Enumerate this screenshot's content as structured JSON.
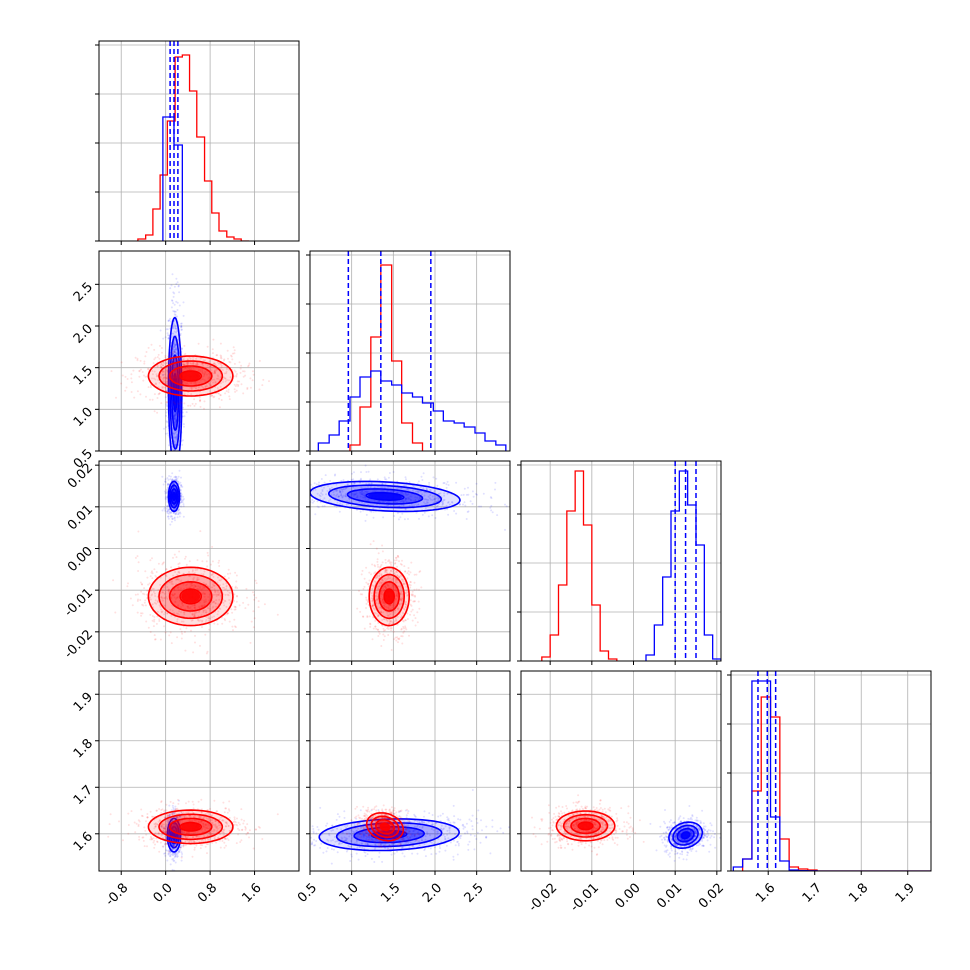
{
  "chart_data": {
    "type": "corner",
    "series": [
      {
        "name": "",
        "color": "#0000ff"
      },
      {
        "name": "",
        "color": "#ff0000"
      }
    ],
    "parameters": [
      {
        "index": 0,
        "range": [
          -1.2,
          2.4
        ],
        "ticks": [
          "-0.8",
          "0.0",
          "0.8",
          "1.6"
        ],
        "tick_values": [
          -0.8,
          0.0,
          0.8,
          1.6
        ]
      },
      {
        "index": 1,
        "range": [
          0.5,
          2.9
        ],
        "ticks": [
          "0.5",
          "1.0",
          "1.5",
          "2.0",
          "2.5"
        ],
        "tick_values": [
          0.5,
          1.0,
          1.5,
          2.0,
          2.5
        ]
      },
      {
        "index": 2,
        "range": [
          -0.027,
          0.021
        ],
        "ticks": [
          "-0.02",
          "-0.01",
          "0.00",
          "0.01",
          "0.02"
        ],
        "tick_values": [
          -0.02,
          -0.01,
          0.0,
          0.01,
          0.02
        ]
      },
      {
        "index": 3,
        "range": [
          1.52,
          1.95
        ],
        "ticks": [
          "1.6",
          "1.7",
          "1.8",
          "1.9"
        ],
        "tick_values": [
          1.6,
          1.7,
          1.8,
          1.9
        ]
      }
    ],
    "histograms": [
      {
        "param": 0,
        "blue": {
          "bins": [
            -0.05,
            0.15,
            0.3
          ],
          "counts": [
            0.62,
            0.48
          ],
          "quantiles": [
            0.08,
            0.15,
            0.22
          ]
        },
        "red": {
          "bins": [
            -0.5,
            -0.36,
            -0.23,
            -0.1,
            0.03,
            0.17,
            0.3,
            0.43,
            0.56,
            0.7,
            0.83,
            0.96,
            1.1,
            1.23,
            1.36,
            1.5
          ],
          "counts": [
            0.01,
            0.03,
            0.16,
            0.33,
            0.6,
            0.92,
            0.93,
            0.75,
            0.52,
            0.3,
            0.14,
            0.05,
            0.02,
            0.01,
            0.0
          ]
        }
      },
      {
        "param": 1,
        "blue": {
          "bins": [
            0.6,
            0.73,
            0.85,
            0.98,
            1.1,
            1.23,
            1.35,
            1.48,
            1.6,
            1.73,
            1.85,
            1.98,
            2.1,
            2.23,
            2.35,
            2.48,
            2.6,
            2.73,
            2.85
          ],
          "counts": [
            0.04,
            0.08,
            0.15,
            0.27,
            0.37,
            0.4,
            0.35,
            0.33,
            0.29,
            0.27,
            0.24,
            0.2,
            0.15,
            0.14,
            0.12,
            0.09,
            0.05,
            0.03
          ],
          "quantiles": [
            0.96,
            1.35,
            1.95
          ]
        },
        "red": {
          "bins": [
            0.98,
            1.1,
            1.23,
            1.35,
            1.48,
            1.6,
            1.73,
            1.85
          ],
          "counts": [
            0.03,
            0.22,
            0.57,
            0.93,
            0.45,
            0.14,
            0.04
          ]
        }
      },
      {
        "param": 2,
        "blue": {
          "bins": [
            0.003,
            0.005,
            0.007,
            0.009,
            0.011,
            0.013,
            0.015,
            0.017,
            0.019,
            0.021
          ],
          "counts": [
            0.03,
            0.18,
            0.42,
            0.75,
            0.95,
            0.78,
            0.58,
            0.13,
            0.01
          ],
          "quantiles": [
            0.01,
            0.0125,
            0.015
          ]
        },
        "red": {
          "bins": [
            -0.022,
            -0.02,
            -0.018,
            -0.016,
            -0.014,
            -0.012,
            -0.01,
            -0.008,
            -0.006,
            -0.004
          ],
          "counts": [
            0.02,
            0.13,
            0.38,
            0.75,
            0.95,
            0.68,
            0.28,
            0.05,
            0.01
          ]
        }
      },
      {
        "param": 3,
        "blue": {
          "bins": [
            1.525,
            1.545,
            1.565,
            1.585,
            1.605,
            1.625,
            1.645,
            1.665,
            1.685,
            1.705,
            1.95
          ],
          "counts": [
            0.02,
            0.06,
            0.95,
            0.95,
            0.27,
            0.05,
            0.005,
            0.002,
            0.001,
            0.0
          ],
          "quantiles": [
            1.578,
            1.598,
            1.616
          ]
        },
        "red": {
          "bins": [
            1.545,
            1.565,
            1.585,
            1.605,
            1.625,
            1.645,
            1.665,
            1.685,
            1.705,
            1.95
          ],
          "counts": [
            0.06,
            0.4,
            0.87,
            0.77,
            0.16,
            0.02,
            0.01,
            0.005,
            0.0
          ]
        }
      }
    ],
    "joint": [
      {
        "x_param": 0,
        "y_param": 1,
        "blue": {
          "mean": [
            0.17,
            1.2
          ],
          "sd": [
            0.06,
            0.45
          ],
          "rho": -0.05,
          "levels": [
            0.5,
            1.0,
            1.5,
            2.0
          ]
        },
        "red": {
          "mean": [
            0.45,
            1.4
          ],
          "sd": [
            0.38,
            0.12
          ],
          "rho": 0.0,
          "levels": [
            0.5,
            1.0,
            1.5,
            2.0
          ]
        }
      },
      {
        "x_param": 0,
        "y_param": 2,
        "blue": {
          "mean": [
            0.15,
            0.0125
          ],
          "sd": [
            0.05,
            0.0018
          ],
          "rho": 0.0,
          "levels": [
            0.5,
            1.0,
            1.5,
            2.0
          ]
        },
        "red": {
          "mean": [
            0.45,
            -0.0115
          ],
          "sd": [
            0.38,
            0.0035
          ],
          "rho": 0.0,
          "levels": [
            0.5,
            1.0,
            1.5,
            2.0
          ]
        }
      },
      {
        "x_param": 1,
        "y_param": 2,
        "blue": {
          "mean": [
            1.4,
            0.0125
          ],
          "sd": [
            0.45,
            0.0018
          ],
          "rho": -0.25,
          "levels": [
            0.5,
            1.0,
            1.5,
            2.0
          ]
        },
        "red": {
          "mean": [
            1.45,
            -0.0115
          ],
          "sd": [
            0.12,
            0.0035
          ],
          "rho": 0.0,
          "levels": [
            0.5,
            1.0,
            1.5,
            2.0
          ]
        }
      },
      {
        "x_param": 0,
        "y_param": 3,
        "blue": {
          "mean": [
            0.15,
            1.597
          ],
          "sd": [
            0.06,
            0.018
          ],
          "rho": 0.0,
          "levels": [
            0.5,
            1.0,
            1.5,
            2.0
          ]
        },
        "red": {
          "mean": [
            0.45,
            1.615
          ],
          "sd": [
            0.38,
            0.018
          ],
          "rho": 0.0,
          "levels": [
            0.5,
            1.0,
            1.5,
            2.0
          ]
        }
      },
      {
        "x_param": 1,
        "y_param": 3,
        "blue": {
          "mean": [
            1.45,
            1.598
          ],
          "sd": [
            0.42,
            0.017
          ],
          "rho": 0.15,
          "levels": [
            0.5,
            1.0,
            1.5,
            2.0
          ]
        },
        "red": {
          "mean": [
            1.4,
            1.615
          ],
          "sd": [
            0.11,
            0.015
          ],
          "rho": -0.2,
          "levels": [
            0.5,
            1.0,
            1.5,
            2.0
          ]
        }
      },
      {
        "x_param": 2,
        "y_param": 3,
        "blue": {
          "mean": [
            0.0125,
            1.597
          ],
          "sd": [
            0.002,
            0.014
          ],
          "rho": 0.2,
          "levels": [
            0.5,
            1.0,
            1.5,
            2.0
          ]
        },
        "red": {
          "mean": [
            -0.0115,
            1.617
          ],
          "sd": [
            0.0035,
            0.016
          ],
          "rho": 0.0,
          "levels": [
            0.5,
            1.0,
            1.5,
            2.0
          ]
        }
      }
    ],
    "grid": true,
    "legend": "none"
  }
}
